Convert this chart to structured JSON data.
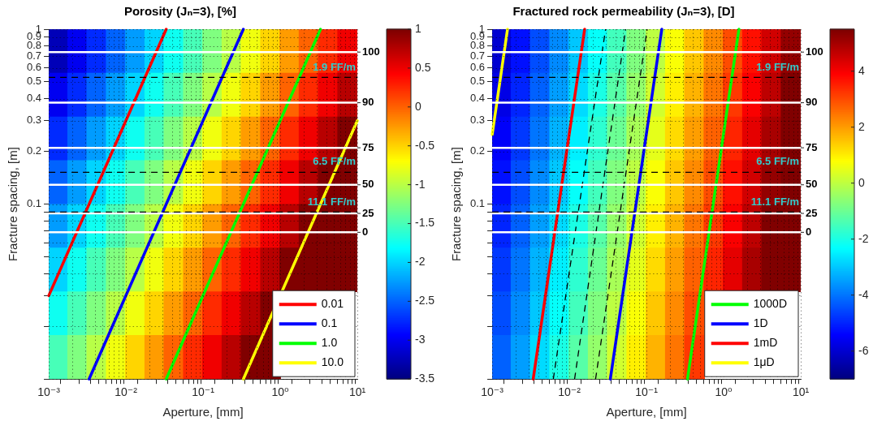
{
  "chart_data": [
    {
      "type": "heatmap",
      "title": "Porosity (Jₙ=3), [%]",
      "xlabel": "Aperture, [mm]",
      "ylabel": "Fracture spacing, [m]",
      "log": "xy",
      "grid": true,
      "legend": "bottom right",
      "xlim": [
        0.001,
        10
      ],
      "ylim": [
        0.01,
        1
      ],
      "xticks": [
        {
          "value": 0.001,
          "label": "10⁻³"
        },
        {
          "value": 0.002,
          "label": null
        },
        {
          "value": 0.003,
          "label": null
        },
        {
          "value": 0.004,
          "label": null
        },
        {
          "value": 0.005,
          "label": null
        },
        {
          "value": 0.006,
          "label": null
        },
        {
          "value": 0.007,
          "label": null
        },
        {
          "value": 0.008,
          "label": null
        },
        {
          "value": 0.009,
          "label": null
        },
        {
          "value": 0.01,
          "label": "10⁻²"
        },
        {
          "value": 0.02,
          "label": null
        },
        {
          "value": 0.03,
          "label": null
        },
        {
          "value": 0.04,
          "label": null
        },
        {
          "value": 0.05,
          "label": null
        },
        {
          "value": 0.06,
          "label": null
        },
        {
          "value": 0.07,
          "label": null
        },
        {
          "value": 0.08,
          "label": null
        },
        {
          "value": 0.09,
          "label": null
        },
        {
          "value": 0.1,
          "label": "10⁻¹"
        },
        {
          "value": 0.2,
          "label": null
        },
        {
          "value": 0.3,
          "label": null
        },
        {
          "value": 0.4,
          "label": null
        },
        {
          "value": 0.5,
          "label": null
        },
        {
          "value": 0.6,
          "label": null
        },
        {
          "value": 0.7,
          "label": null
        },
        {
          "value": 0.8,
          "label": null
        },
        {
          "value": 0.9,
          "label": null
        },
        {
          "value": 1,
          "label": "10⁰"
        },
        {
          "value": 2,
          "label": null
        },
        {
          "value": 3,
          "label": null
        },
        {
          "value": 4,
          "label": null
        },
        {
          "value": 5,
          "label": null
        },
        {
          "value": 6,
          "label": null
        },
        {
          "value": 7,
          "label": null
        },
        {
          "value": 8,
          "label": null
        },
        {
          "value": 9,
          "label": null
        },
        {
          "value": 10,
          "label": "10¹"
        }
      ],
      "yticks": [
        {
          "value": 0.01,
          "label": null
        },
        {
          "value": 0.02,
          "label": null
        },
        {
          "value": 0.03,
          "label": null
        },
        {
          "value": 0.04,
          "label": null
        },
        {
          "value": 0.05,
          "label": null
        },
        {
          "value": 0.06,
          "label": null
        },
        {
          "value": 0.07,
          "label": null
        },
        {
          "value": 0.08,
          "label": null
        },
        {
          "value": 0.09,
          "label": null
        },
        0.1,
        0.2,
        0.3,
        0.4,
        0.5,
        0.6,
        0.7,
        0.8,
        0.9,
        1
      ],
      "clim": [
        -3.5,
        1
      ],
      "cticks": [
        -3.5,
        -3,
        -2.5,
        -2,
        -1.5,
        -1,
        -0.5,
        0,
        0.5,
        1
      ],
      "x": [
        0.00133,
        0.00237,
        0.0042,
        0.0075,
        0.0133,
        0.0237,
        0.042,
        0.075,
        0.133,
        0.237,
        0.42,
        0.75,
        1.33,
        2.37,
        4.2,
        7.5
      ],
      "y": [
        0.75,
        0.42,
        0.237,
        0.133,
        0.075,
        0.042,
        0.0237,
        0.0133
      ],
      "cells": [
        [
          -3.25,
          -3,
          -2.75,
          -2.5,
          -2.25,
          -2,
          -1.75,
          -1.5,
          -1.25,
          -1,
          -0.75,
          -0.5,
          -0.25,
          0,
          0.25,
          0.5
        ],
        [
          -3,
          -2.75,
          -2.5,
          -2.25,
          -2,
          -1.75,
          -1.5,
          -1.25,
          -1,
          -0.75,
          -0.5,
          -0.25,
          0,
          0.25,
          0.5,
          0.75
        ],
        [
          -2.75,
          -2.5,
          -2.25,
          -2,
          -1.75,
          -1.5,
          -1.25,
          -1,
          -0.75,
          -0.5,
          -0.25,
          0,
          0.25,
          0.5,
          0.75,
          1
        ],
        [
          -2.5,
          -2.25,
          -2,
          -1.75,
          -1.5,
          -1.25,
          -1,
          -0.75,
          -0.5,
          -0.25,
          0,
          0.25,
          0.5,
          0.75,
          1,
          1
        ],
        [
          -2.25,
          -2,
          -1.75,
          -1.5,
          -1.25,
          -1,
          -0.75,
          -0.5,
          -0.25,
          0,
          0.25,
          0.5,
          0.75,
          1,
          1,
          1
        ],
        [
          -2,
          -1.75,
          -1.5,
          -1.25,
          -1,
          -0.75,
          -0.5,
          -0.25,
          0,
          0.25,
          0.5,
          0.75,
          1,
          1,
          1,
          1
        ],
        [
          -1.75,
          -1.5,
          -1.25,
          -1,
          -0.75,
          -0.5,
          -0.25,
          0,
          0.25,
          0.5,
          0.75,
          1,
          null,
          null,
          null,
          null
        ],
        [
          -1.5,
          -1.25,
          -1,
          -0.75,
          -0.5,
          -0.25,
          0,
          0.25,
          0.5,
          0.75,
          1,
          1,
          null,
          null,
          null,
          null
        ]
      ],
      "series": [
        {
          "type": "line",
          "name": "0.01",
          "color": "#ff0000",
          "x": [
            0.001,
            0.0333
          ],
          "values": [
            0.03,
            1
          ]
        },
        {
          "type": "line",
          "name": "0.1",
          "color": "#0000ff",
          "x": [
            0.00333,
            0.333
          ],
          "values": [
            0.01,
            1
          ]
        },
        {
          "type": "line",
          "name": "1.0",
          "color": "#00ff00",
          "x": [
            0.0333,
            3.33
          ],
          "values": [
            0.01,
            1
          ]
        },
        {
          "type": "line",
          "name": "10.0",
          "color": "#ffff00",
          "x": [
            0.333,
            10
          ],
          "values": [
            0.01,
            0.3
          ]
        }
      ],
      "annotations": [
        "100",
        "90",
        "75",
        "50",
        "25",
        "0"
      ],
      "ref_lines": [
        {
          "axis": "y",
          "value": 0.74,
          "color": "#ffffff",
          "line_style": "solid"
        },
        {
          "axis": "y",
          "value": 0.38,
          "color": "#ffffff",
          "line_style": "solid"
        },
        {
          "axis": "y",
          "value": 0.21,
          "color": "#ffffff",
          "line_style": "solid"
        },
        {
          "axis": "y",
          "value": 0.129,
          "color": "#ffffff",
          "line_style": "solid"
        },
        {
          "axis": "y",
          "value": 0.0885,
          "color": "#ffffff",
          "line_style": "solid"
        },
        {
          "axis": "y",
          "value": 0.069,
          "color": "#ffffff",
          "line_style": "solid"
        },
        {
          "axis": "y",
          "value": 0.53,
          "label": "1.9 FF/m",
          "color": "#000000",
          "line_style": "dashed"
        },
        {
          "axis": "y",
          "value": 0.152,
          "label": "6.5 FF/m",
          "color": "#000000",
          "line_style": "dashed"
        },
        {
          "axis": "y",
          "value": 0.09,
          "label": "11.1 FF/m",
          "color": "#000000",
          "line_style": "dashed"
        }
      ]
    },
    {
      "type": "heatmap",
      "title": "Fractured rock permeability (Jₙ=3), [D]",
      "xlabel": "Aperture, [mm]",
      "ylabel": "Fracture spacing, [m]",
      "log": "xy",
      "grid": true,
      "legend": "bottom right",
      "xlim": [
        0.001,
        10
      ],
      "ylim": [
        0.01,
        1
      ],
      "xticks": [
        {
          "value": 0.001,
          "label": "10⁻³"
        },
        {
          "value": 0.002,
          "label": null
        },
        {
          "value": 0.003,
          "label": null
        },
        {
          "value": 0.004,
          "label": null
        },
        {
          "value": 0.005,
          "label": null
        },
        {
          "value": 0.006,
          "label": null
        },
        {
          "value": 0.007,
          "label": null
        },
        {
          "value": 0.008,
          "label": null
        },
        {
          "value": 0.009,
          "label": null
        },
        {
          "value": 0.01,
          "label": "10⁻²"
        },
        {
          "value": 0.02,
          "label": null
        },
        {
          "value": 0.03,
          "label": null
        },
        {
          "value": 0.04,
          "label": null
        },
        {
          "value": 0.05,
          "label": null
        },
        {
          "value": 0.06,
          "label": null
        },
        {
          "value": 0.07,
          "label": null
        },
        {
          "value": 0.08,
          "label": null
        },
        {
          "value": 0.09,
          "label": null
        },
        {
          "value": 0.1,
          "label": "10⁻¹"
        },
        {
          "value": 0.2,
          "label": null
        },
        {
          "value": 0.3,
          "label": null
        },
        {
          "value": 0.4,
          "label": null
        },
        {
          "value": 0.5,
          "label": null
        },
        {
          "value": 0.6,
          "label": null
        },
        {
          "value": 0.7,
          "label": null
        },
        {
          "value": 0.8,
          "label": null
        },
        {
          "value": 0.9,
          "label": null
        },
        {
          "value": 1,
          "label": "10⁰"
        },
        {
          "value": 2,
          "label": null
        },
        {
          "value": 3,
          "label": null
        },
        {
          "value": 4,
          "label": null
        },
        {
          "value": 5,
          "label": null
        },
        {
          "value": 6,
          "label": null
        },
        {
          "value": 7,
          "label": null
        },
        {
          "value": 8,
          "label": null
        },
        {
          "value": 9,
          "label": null
        },
        {
          "value": 10,
          "label": "10¹"
        }
      ],
      "yticks": [
        {
          "value": 0.01,
          "label": null
        },
        {
          "value": 0.02,
          "label": null
        },
        {
          "value": 0.03,
          "label": null
        },
        {
          "value": 0.04,
          "label": null
        },
        {
          "value": 0.05,
          "label": null
        },
        {
          "value": 0.06,
          "label": null
        },
        {
          "value": 0.07,
          "label": null
        },
        {
          "value": 0.08,
          "label": null
        },
        {
          "value": 0.09,
          "label": null
        },
        0.1,
        0.2,
        0.3,
        0.4,
        0.5,
        0.6,
        0.7,
        0.8,
        0.9,
        1
      ],
      "clim": [
        -7,
        5.5
      ],
      "cticks": [
        -6,
        -4,
        -2,
        0,
        2,
        4
      ],
      "x": [
        0.00133,
        0.00237,
        0.0042,
        0.0075,
        0.0133,
        0.0237,
        0.042,
        0.075,
        0.133,
        0.237,
        0.42,
        0.75,
        1.33,
        2.37,
        4.2,
        7.5
      ],
      "y": [
        0.75,
        0.42,
        0.237,
        0.133,
        0.075,
        0.042,
        0.0237,
        0.0133
      ],
      "cells": [
        [
          -6,
          -5.25,
          -4.5,
          -3.75,
          -3,
          -2.25,
          -1.5,
          -0.75,
          0,
          0.75,
          1.5,
          2.25,
          3,
          3.75,
          4.5,
          5.25
        ],
        [
          -5.75,
          -5,
          -4.25,
          -3.5,
          -2.75,
          -2,
          -1.25,
          -0.5,
          0.25,
          1,
          1.75,
          2.5,
          3.25,
          4,
          4.75,
          5.5
        ],
        [
          -5.5,
          -4.75,
          -4,
          -3.25,
          -2.5,
          -1.75,
          -1,
          -0.25,
          0.5,
          1.25,
          2,
          2.75,
          3.5,
          4.25,
          5,
          5.5
        ],
        [
          -5.25,
          -4.5,
          -3.75,
          -3,
          -2.25,
          -1.5,
          -0.75,
          0,
          0.75,
          1.5,
          2.25,
          3,
          3.75,
          4.5,
          5.25,
          5.5
        ],
        [
          -5,
          -4.25,
          -3.5,
          -2.75,
          -2,
          -1.25,
          -0.5,
          0.25,
          1,
          1.75,
          2.5,
          3.25,
          4,
          4.75,
          5.5,
          5.5
        ],
        [
          -4.75,
          -4,
          -3.25,
          -2.5,
          -1.75,
          -1,
          -0.25,
          0.5,
          1.25,
          2,
          2.75,
          3.5,
          4.25,
          5,
          5.5,
          5.5
        ],
        [
          -4.5,
          -3.75,
          -3,
          -2.25,
          -1.5,
          -0.75,
          0,
          0.75,
          1.5,
          2.25,
          3,
          null,
          null,
          null,
          null,
          null
        ],
        [
          -4.25,
          -3.5,
          -2.75,
          -2,
          -1.25,
          -0.5,
          0.25,
          1,
          1.75,
          2.5,
          3.25,
          null,
          null,
          null,
          null,
          null
        ]
      ],
      "series": [
        {
          "type": "line",
          "name": "1000D",
          "color": "#00ff00",
          "x": [
            0.34,
            1.58
          ],
          "values": [
            0.01,
            1
          ]
        },
        {
          "type": "line",
          "name": "1D",
          "color": "#0000ff",
          "x": [
            0.034,
            0.158
          ],
          "values": [
            0.01,
            1
          ]
        },
        {
          "type": "line",
          "name": "1mD",
          "color": "#ff0000",
          "x": [
            0.0034,
            0.0158
          ],
          "values": [
            0.01,
            1
          ]
        },
        {
          "type": "line",
          "name": "1μD",
          "color": "#ffff00",
          "x": [
            0.001,
            0.00158
          ],
          "values": [
            0.25,
            1
          ]
        },
        {
          "type": "line",
          "color": "#000000",
          "line_style": "dashed",
          "x": [
            0.0062,
            0.0295
          ],
          "values": [
            0.01,
            1
          ]
        },
        {
          "type": "line",
          "color": "#000000",
          "line_style": "dashed",
          "x": [
            0.0117,
            0.0537
          ],
          "values": [
            0.01,
            1
          ]
        },
        {
          "type": "line",
          "color": "#000000",
          "line_style": "dashed",
          "x": [
            0.0219,
            0.102
          ],
          "values": [
            0.01,
            1
          ]
        }
      ],
      "annotations": [
        "100",
        "90",
        "75",
        "50",
        "25",
        "0"
      ],
      "ref_lines": [
        {
          "axis": "y",
          "value": 0.74,
          "color": "#ffffff",
          "line_style": "solid"
        },
        {
          "axis": "y",
          "value": 0.38,
          "color": "#ffffff",
          "line_style": "solid"
        },
        {
          "axis": "y",
          "value": 0.21,
          "color": "#ffffff",
          "line_style": "solid"
        },
        {
          "axis": "y",
          "value": 0.129,
          "color": "#ffffff",
          "line_style": "solid"
        },
        {
          "axis": "y",
          "value": 0.0885,
          "color": "#ffffff",
          "line_style": "solid"
        },
        {
          "axis": "y",
          "value": 0.069,
          "color": "#ffffff",
          "line_style": "solid"
        },
        {
          "axis": "y",
          "value": 0.53,
          "label": "1.9 FF/m",
          "color": "#000000",
          "line_style": "dashed"
        },
        {
          "axis": "y",
          "value": 0.152,
          "label": "6.5 FF/m",
          "color": "#000000",
          "line_style": "dashed"
        },
        {
          "axis": "y",
          "value": 0.09,
          "label": "11.1 FF/m",
          "color": "#000000",
          "line_style": "dashed"
        }
      ]
    }
  ]
}
